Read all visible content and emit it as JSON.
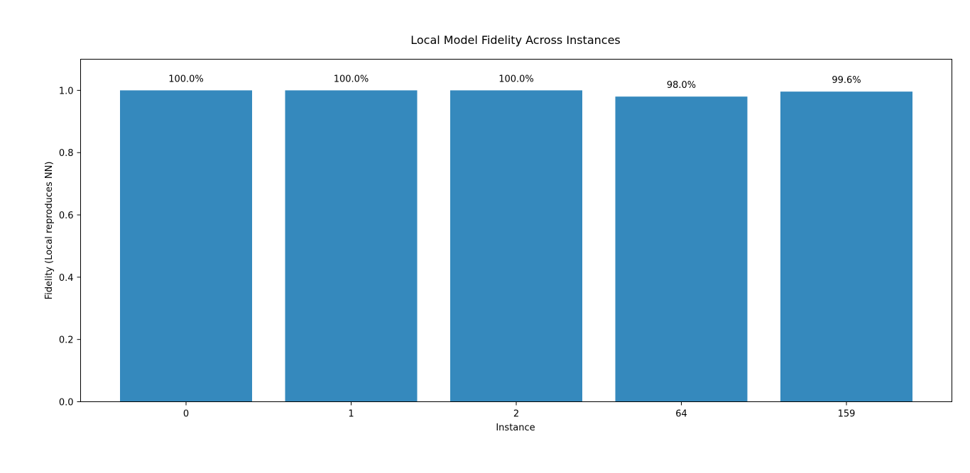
{
  "chart_data": {
    "type": "bar",
    "title": "Local Model Fidelity Across Instances",
    "xlabel": "Instance",
    "ylabel": "Fidelity (Local reproduces NN)",
    "categories": [
      "0",
      "1",
      "2",
      "64",
      "159"
    ],
    "values": [
      1.0,
      1.0,
      1.0,
      0.98,
      0.996
    ],
    "data_labels": [
      "100.0%",
      "100.0%",
      "100.0%",
      "98.0%",
      "99.6%"
    ],
    "ylim": [
      0,
      1.1
    ],
    "yticks": [
      0.0,
      0.2,
      0.4,
      0.6,
      0.8,
      1.0
    ],
    "ytick_labels": [
      "0.0",
      "0.2",
      "0.4",
      "0.6",
      "0.8",
      "1.0"
    ],
    "bar_color": "#3589bd",
    "grid": false,
    "legend": "none"
  }
}
